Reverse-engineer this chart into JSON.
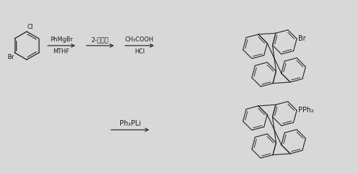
{
  "bg_color": "#d8d8d8",
  "line_color": "#2a2a2a",
  "text_color": "#1a1a1a",
  "reaction1_above": "PhMgBr",
  "reaction1_below": "MTHF",
  "reaction2_above": "2-溟茹酮",
  "reaction3_above": "CH₃COOH",
  "reaction3_below": "HCl",
  "reaction4_above": "Ph₂PLi",
  "product1_label": "Br",
  "product2_label": "PPh₂",
  "figsize": [
    5.1,
    2.48
  ],
  "dpi": 100
}
